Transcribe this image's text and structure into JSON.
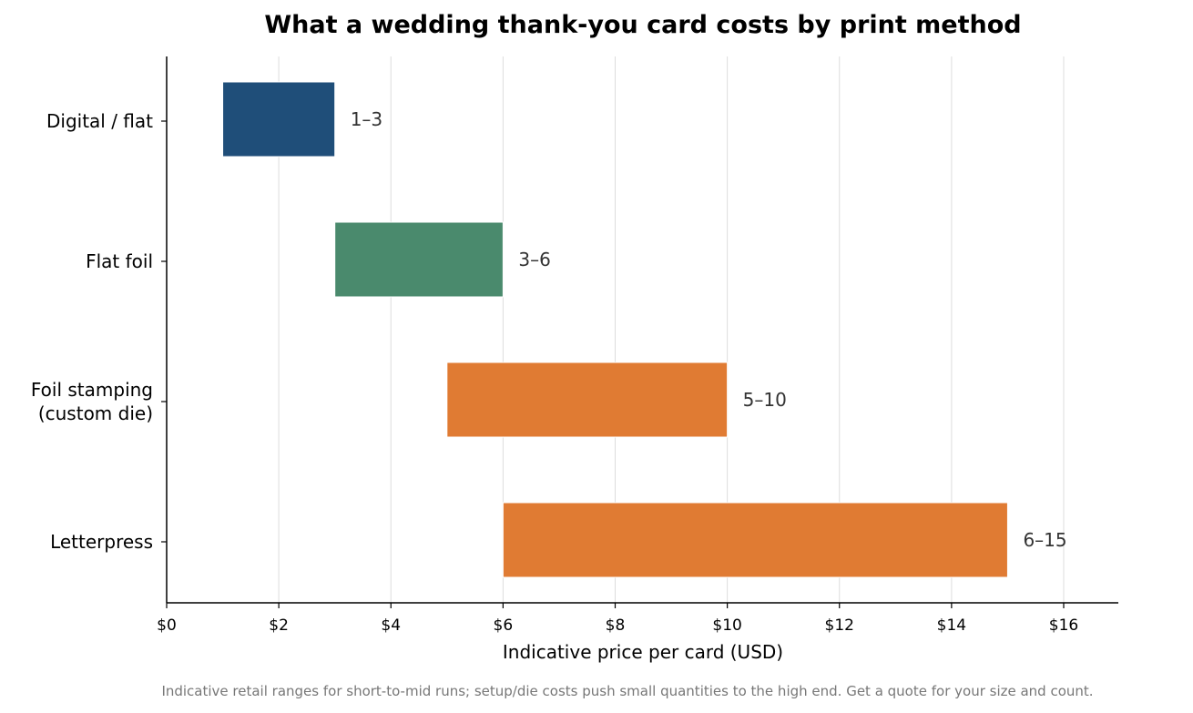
{
  "chart_data": {
    "type": "bar",
    "orientation": "horizontal-range",
    "title": "What a wedding thank-you card costs by print method",
    "xlabel": "Indicative price per card (USD)",
    "ylabel": "",
    "xlim": [
      0,
      17
    ],
    "x_ticks": [
      0,
      2,
      4,
      6,
      8,
      10,
      12,
      14,
      16
    ],
    "x_tick_labels": [
      "$0",
      "$2",
      "$4",
      "$6",
      "$8",
      "$10",
      "$12",
      "$14",
      "$16"
    ],
    "grid": "vertical gridlines on",
    "legend": "none",
    "categories": [
      [
        "Digital / flat"
      ],
      [
        "Flat foil"
      ],
      [
        "Foil stamping",
        "(custom die)"
      ],
      [
        "Letterpress"
      ]
    ],
    "ranges": [
      {
        "low": 1,
        "high": 3,
        "label": "1–3",
        "color": "#1f4e79"
      },
      {
        "low": 3,
        "high": 6,
        "label": "3–6",
        "color": "#4a8a6d"
      },
      {
        "low": 5,
        "high": 10,
        "label": "5–10",
        "color": "#e07b33"
      },
      {
        "low": 6,
        "high": 15,
        "label": "6–15",
        "color": "#e07b33"
      }
    ],
    "footnote": "Indicative retail ranges for short-to-mid runs; setup/die costs push small quantities to the high end. Get a quote for your size and count."
  }
}
